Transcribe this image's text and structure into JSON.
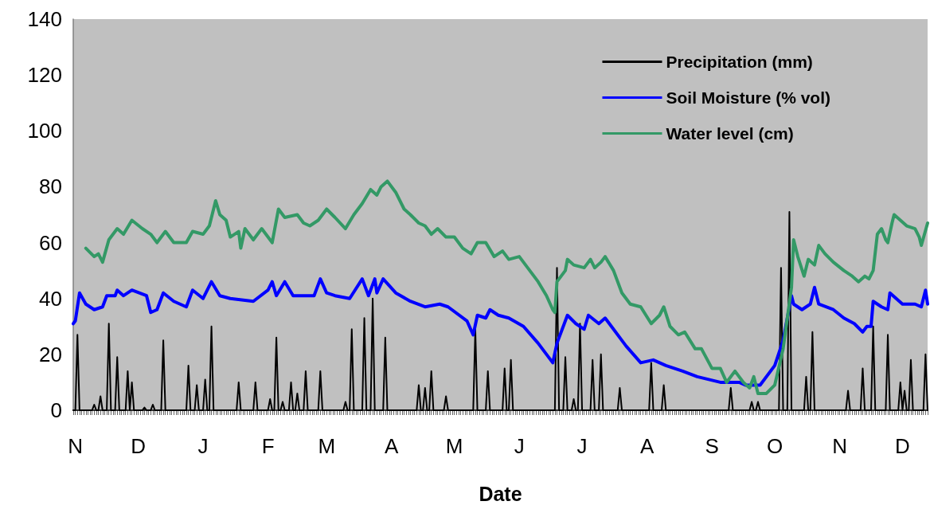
{
  "chart_data": {
    "type": "line",
    "xlabel": "Date",
    "categories": [
      null,
      "N",
      null,
      null,
      null,
      null,
      null,
      null,
      null,
      null,
      null,
      null,
      null,
      null,
      null,
      null,
      null,
      null,
      null,
      null,
      null,
      null,
      null,
      null,
      null,
      null,
      null,
      null,
      null,
      null,
      null,
      "D",
      null,
      null,
      null,
      null,
      null,
      null,
      null,
      null,
      null,
      null,
      null,
      null,
      null,
      null,
      null,
      null,
      null,
      null,
      null,
      null,
      null,
      null,
      null,
      null,
      null,
      null,
      null,
      null,
      null,
      null,
      "J",
      null,
      null,
      null,
      null,
      null,
      null,
      null,
      null,
      null,
      null,
      null,
      null,
      null,
      null,
      null,
      null,
      null,
      null,
      null,
      null,
      null,
      null,
      null,
      null,
      null,
      null,
      null,
      null,
      null,
      null,
      "F",
      null,
      null,
      null,
      null,
      null,
      null,
      null,
      null,
      null,
      null,
      null,
      null,
      null,
      null,
      null,
      null,
      null,
      null,
      null,
      null,
      null,
      null,
      null,
      null,
      null,
      null,
      null,
      "M",
      null,
      null,
      null,
      null,
      null,
      null,
      null,
      null,
      null,
      null,
      null,
      null,
      null,
      null,
      null,
      null,
      null,
      null,
      null,
      null,
      null,
      null,
      null,
      null,
      null,
      null,
      null,
      null,
      null,
      null,
      "A",
      null,
      null,
      null,
      null,
      null,
      null,
      null,
      null,
      null,
      null,
      null,
      null,
      null,
      null,
      null,
      null,
      null,
      null,
      null,
      null,
      null,
      null,
      null,
      null,
      null,
      null,
      null,
      null,
      null,
      "M",
      null,
      null,
      null,
      null,
      null,
      null,
      null,
      null,
      null,
      null,
      null,
      null,
      null,
      null,
      null,
      null,
      null,
      null,
      null,
      null,
      null,
      null,
      null,
      null,
      null,
      null,
      null,
      null,
      null,
      null,
      "J",
      null,
      null,
      null,
      null,
      null,
      null,
      null,
      null,
      null,
      null,
      null,
      null,
      null,
      null,
      null,
      null,
      null,
      null,
      null,
      null,
      null,
      null,
      null,
      null,
      null,
      null,
      null,
      null,
      null,
      "J",
      null,
      null,
      null,
      null,
      null,
      null,
      null,
      null,
      null,
      null,
      null,
      null,
      null,
      null,
      null,
      null,
      null,
      null,
      null,
      null,
      null,
      null,
      null,
      null,
      null,
      null,
      null,
      null,
      null,
      null,
      "A",
      null,
      null,
      null,
      null,
      null,
      null,
      null,
      null,
      null,
      null,
      null,
      null,
      null,
      null,
      null,
      null,
      null,
      null,
      null,
      null,
      null,
      null,
      null,
      null,
      null,
      null,
      null,
      null,
      null,
      null,
      "S",
      null,
      null,
      null,
      null,
      null,
      null,
      null,
      null,
      null,
      null,
      null,
      null,
      null,
      null,
      null,
      null,
      null,
      null,
      null,
      null,
      null,
      null,
      null,
      null,
      null,
      null,
      null,
      null,
      null,
      "O",
      null,
      null,
      null,
      null,
      null,
      null,
      null,
      null,
      null,
      null,
      null,
      null,
      null,
      null,
      null,
      null,
      null,
      null,
      null,
      null,
      null,
      null,
      null,
      null,
      null,
      null,
      null,
      null,
      null,
      null,
      "N",
      null,
      null,
      null,
      null,
      null,
      null,
      null,
      null,
      null,
      null,
      null,
      null,
      null,
      null,
      null,
      null,
      null,
      null,
      null,
      null,
      null,
      null,
      null,
      null,
      null,
      null,
      null,
      null,
      null,
      "D",
      null,
      null,
      null,
      null,
      null,
      null,
      null,
      null,
      null,
      null,
      null,
      null
    ],
    "ylim": [
      0,
      140
    ],
    "yticks": [
      0,
      20,
      40,
      60,
      80,
      100,
      120,
      140
    ],
    "grid": false,
    "legend": "top right",
    "marker": "none",
    "line_style": "solid",
    "series": [
      {
        "name": "Precipitation (mm)",
        "color": "#000000",
        "values": [
          0,
          0,
          27,
          0,
          0,
          0,
          0,
          0,
          0,
          0,
          2,
          0,
          0,
          5,
          0,
          0,
          0,
          31,
          0,
          0,
          0,
          19,
          0,
          0,
          0,
          0,
          14,
          0,
          10,
          0,
          0,
          0,
          0,
          0,
          1,
          0,
          0,
          0,
          2,
          0,
          0,
          0,
          0,
          25,
          0,
          0,
          0,
          0,
          0,
          0,
          0,
          0,
          0,
          0,
          0,
          16,
          0,
          0,
          0,
          9,
          0,
          0,
          0,
          11,
          0,
          0,
          30,
          0,
          0,
          0,
          0,
          0,
          0,
          0,
          0,
          0,
          0,
          0,
          0,
          10,
          0,
          0,
          0,
          0,
          0,
          0,
          0,
          10,
          0,
          0,
          0,
          0,
          0,
          0,
          4,
          0,
          0,
          26,
          0,
          0,
          3,
          0,
          0,
          0,
          10,
          0,
          0,
          6,
          0,
          0,
          0,
          14,
          0,
          0,
          0,
          0,
          0,
          0,
          14,
          0,
          0,
          0,
          0,
          0,
          0,
          0,
          0,
          0,
          0,
          0,
          3,
          0,
          0,
          29,
          0,
          0,
          0,
          0,
          0,
          33,
          0,
          0,
          0,
          40,
          0,
          0,
          0,
          0,
          0,
          26,
          0,
          0,
          0,
          0,
          0,
          0,
          0,
          0,
          0,
          0,
          0,
          0,
          0,
          0,
          0,
          9,
          0,
          0,
          8,
          0,
          0,
          14,
          0,
          0,
          0,
          0,
          0,
          0,
          5,
          0,
          0,
          0,
          0,
          0,
          0,
          0,
          0,
          0,
          0,
          0,
          0,
          0,
          29,
          0,
          0,
          0,
          0,
          0,
          14,
          0,
          0,
          0,
          0,
          0,
          0,
          0,
          15,
          0,
          0,
          18,
          0,
          0,
          0,
          0,
          0,
          0,
          0,
          0,
          0,
          0,
          0,
          0,
          0,
          0,
          0,
          0,
          0,
          0,
          0,
          0,
          0,
          51,
          0,
          0,
          0,
          19,
          0,
          0,
          0,
          4,
          0,
          0,
          31,
          0,
          0,
          0,
          0,
          0,
          18,
          0,
          0,
          0,
          20,
          0,
          0,
          0,
          0,
          0,
          0,
          0,
          0,
          8,
          0,
          0,
          0,
          0,
          0,
          0,
          0,
          0,
          0,
          0,
          0,
          0,
          0,
          0,
          17,
          0,
          0,
          0,
          0,
          0,
          9,
          0,
          0,
          0,
          0,
          0,
          0,
          0,
          0,
          0,
          0,
          0,
          0,
          0,
          0,
          0,
          0,
          0,
          0,
          0,
          0,
          0,
          0,
          0,
          0,
          0,
          0,
          0,
          0,
          0,
          0,
          0,
          8,
          0,
          0,
          0,
          0,
          0,
          0,
          0,
          0,
          0,
          3,
          0,
          0,
          3,
          0,
          0,
          0,
          0,
          0,
          0,
          0,
          0,
          0,
          0,
          51,
          0,
          0,
          0,
          71,
          0,
          0,
          0,
          0,
          0,
          0,
          0,
          12,
          0,
          0,
          28,
          0,
          0,
          0,
          0,
          0,
          0,
          0,
          0,
          0,
          0,
          0,
          0,
          0,
          0,
          0,
          0,
          7,
          0,
          0,
          0,
          0,
          0,
          0,
          15,
          0,
          0,
          0,
          0,
          30,
          0,
          0,
          0,
          0,
          0,
          0,
          27,
          0,
          0,
          0,
          0,
          0,
          10,
          0,
          7,
          0,
          0,
          18,
          0,
          0,
          0,
          0,
          0,
          0,
          20,
          0
        ]
      },
      {
        "name": "Soil Moisture (% vol)",
        "color": "#0000ff",
        "values": [
          31,
          32,
          null,
          42,
          null,
          null,
          38,
          null,
          null,
          null,
          36,
          null,
          null,
          null,
          37,
          null,
          41,
          null,
          null,
          null,
          41,
          43,
          null,
          null,
          41,
          null,
          null,
          null,
          43,
          null,
          null,
          null,
          null,
          null,
          null,
          41,
          null,
          35,
          null,
          null,
          36,
          null,
          null,
          42,
          null,
          null,
          null,
          null,
          39,
          null,
          null,
          null,
          null,
          null,
          37,
          null,
          null,
          43,
          null,
          null,
          null,
          null,
          40,
          null,
          null,
          null,
          46,
          null,
          null,
          null,
          41,
          null,
          null,
          null,
          null,
          40,
          null,
          null,
          null,
          null,
          null,
          null,
          null,
          null,
          null,
          null,
          39,
          null,
          null,
          null,
          null,
          null,
          null,
          43,
          null,
          46,
          null,
          41,
          null,
          null,
          null,
          46,
          null,
          null,
          null,
          41,
          null,
          null,
          null,
          null,
          41,
          null,
          null,
          null,
          null,
          41,
          null,
          null,
          47,
          null,
          null,
          42,
          null,
          null,
          null,
          41,
          null,
          null,
          null,
          null,
          null,
          null,
          40,
          null,
          null,
          null,
          null,
          null,
          47,
          null,
          null,
          41,
          null,
          null,
          47,
          42,
          null,
          null,
          47,
          null,
          null,
          null,
          null,
          null,
          42,
          null,
          null,
          null,
          null,
          null,
          null,
          39,
          null,
          null,
          null,
          null,
          null,
          null,
          37,
          null,
          null,
          null,
          null,
          null,
          null,
          38,
          null,
          null,
          null,
          37,
          null,
          null,
          null,
          null,
          null,
          null,
          null,
          null,
          32,
          null,
          null,
          27,
          null,
          34,
          null,
          null,
          null,
          33,
          null,
          36,
          null,
          null,
          null,
          34,
          null,
          null,
          null,
          null,
          33,
          null,
          null,
          null,
          null,
          null,
          null,
          30,
          null,
          null,
          null,
          null,
          null,
          null,
          24,
          null,
          null,
          null,
          null,
          null,
          null,
          17,
          null,
          24,
          null,
          null,
          null,
          null,
          34,
          null,
          null,
          null,
          31,
          null,
          null,
          null,
          29,
          null,
          34,
          null,
          null,
          null,
          null,
          31,
          null,
          null,
          33,
          null,
          31,
          null,
          null,
          null,
          null,
          null,
          null,
          null,
          23,
          null,
          null,
          null,
          null,
          null,
          null,
          17,
          null,
          null,
          null,
          null,
          null,
          18,
          null,
          null,
          null,
          null,
          null,
          16,
          null,
          null,
          null,
          null,
          null,
          null,
          null,
          14,
          null,
          null,
          null,
          null,
          null,
          null,
          12,
          null,
          null,
          null,
          null,
          null,
          null,
          null,
          null,
          null,
          null,
          10,
          null,
          null,
          null,
          null,
          null,
          null,
          null,
          null,
          10,
          null,
          null,
          9,
          null,
          null,
          null,
          null,
          null,
          null,
          9,
          null,
          null,
          null,
          null,
          null,
          null,
          16,
          null,
          null,
          null,
          25,
          null,
          null,
          null,
          41,
          38,
          null,
          null,
          null,
          36,
          null,
          null,
          null,
          38,
          null,
          44,
          null,
          38,
          null,
          null,
          null,
          null,
          null,
          null,
          36,
          null,
          null,
          null,
          null,
          33,
          null,
          null,
          null,
          null,
          31,
          null,
          null,
          null,
          28,
          null,
          30,
          null,
          30,
          39,
          null,
          null,
          null,
          37,
          null,
          null,
          36,
          42,
          null,
          null,
          null,
          null,
          null,
          38,
          null,
          null,
          null,
          null,
          null,
          38,
          null,
          null,
          37,
          null,
          43,
          38
        ]
      },
      {
        "name": "Water level (cm)",
        "color": "#339966",
        "values": [
          null,
          null,
          null,
          null,
          null,
          null,
          58,
          null,
          null,
          null,
          55,
          null,
          56,
          null,
          53,
          null,
          null,
          61,
          null,
          null,
          null,
          65,
          null,
          null,
          63,
          null,
          null,
          null,
          68,
          null,
          null,
          null,
          null,
          65,
          null,
          null,
          null,
          63,
          null,
          null,
          60,
          null,
          null,
          null,
          64,
          null,
          null,
          null,
          60,
          null,
          null,
          null,
          null,
          null,
          60,
          null,
          null,
          64,
          null,
          null,
          null,
          null,
          63,
          null,
          null,
          66,
          null,
          null,
          75,
          null,
          70,
          null,
          null,
          68,
          null,
          62,
          null,
          null,
          null,
          64,
          58,
          null,
          65,
          null,
          null,
          null,
          61,
          null,
          null,
          null,
          65,
          null,
          null,
          null,
          null,
          60,
          null,
          null,
          72,
          null,
          null,
          69,
          null,
          null,
          null,
          null,
          null,
          70,
          null,
          null,
          67,
          null,
          null,
          66,
          null,
          null,
          null,
          68,
          null,
          null,
          null,
          72,
          null,
          null,
          null,
          69,
          null,
          null,
          null,
          null,
          65,
          null,
          null,
          null,
          70,
          null,
          null,
          null,
          74,
          null,
          null,
          null,
          79,
          null,
          null,
          77,
          null,
          80,
          null,
          null,
          82,
          null,
          null,
          null,
          78,
          null,
          null,
          null,
          72,
          null,
          null,
          70,
          null,
          null,
          null,
          67,
          null,
          null,
          66,
          null,
          null,
          63,
          null,
          null,
          65,
          null,
          null,
          null,
          62,
          null,
          null,
          null,
          62,
          null,
          null,
          null,
          58,
          null,
          null,
          null,
          56,
          null,
          null,
          60,
          null,
          null,
          null,
          60,
          null,
          null,
          null,
          55,
          null,
          null,
          null,
          57,
          null,
          null,
          54,
          null,
          null,
          null,
          null,
          55,
          null,
          null,
          null,
          51,
          null,
          null,
          null,
          null,
          46,
          null,
          null,
          null,
          41,
          null,
          null,
          36,
          35,
          46,
          null,
          null,
          null,
          50,
          54,
          null,
          null,
          52,
          null,
          null,
          null,
          null,
          51,
          null,
          null,
          54,
          null,
          51,
          null,
          null,
          53,
          null,
          55,
          null,
          null,
          null,
          50,
          null,
          null,
          null,
          42,
          null,
          null,
          null,
          38,
          null,
          null,
          null,
          null,
          37,
          null,
          null,
          null,
          null,
          31,
          null,
          null,
          null,
          34,
          null,
          37,
          null,
          null,
          30,
          null,
          null,
          null,
          27,
          null,
          null,
          28,
          null,
          null,
          null,
          null,
          22,
          null,
          null,
          22,
          null,
          null,
          null,
          null,
          15,
          null,
          null,
          null,
          15,
          null,
          null,
          10,
          null,
          null,
          null,
          14,
          null,
          null,
          null,
          10,
          null,
          null,
          8,
          null,
          12,
          null,
          6,
          null,
          null,
          null,
          6,
          null,
          null,
          null,
          9,
          null,
          null,
          null,
          22,
          null,
          null,
          null,
          44,
          61,
          null,
          55,
          null,
          null,
          48,
          null,
          54,
          null,
          null,
          52,
          null,
          59,
          null,
          null,
          56,
          null,
          null,
          null,
          53,
          null,
          null,
          null,
          null,
          50,
          null,
          null,
          null,
          48,
          null,
          null,
          46,
          null,
          null,
          48,
          null,
          47,
          null,
          50,
          null,
          63,
          null,
          65,
          null,
          61,
          60,
          null,
          67,
          70,
          null,
          null,
          null,
          null,
          null,
          66,
          null,
          null,
          null,
          65,
          null,
          62,
          59,
          null,
          null,
          67
        ]
      }
    ]
  }
}
